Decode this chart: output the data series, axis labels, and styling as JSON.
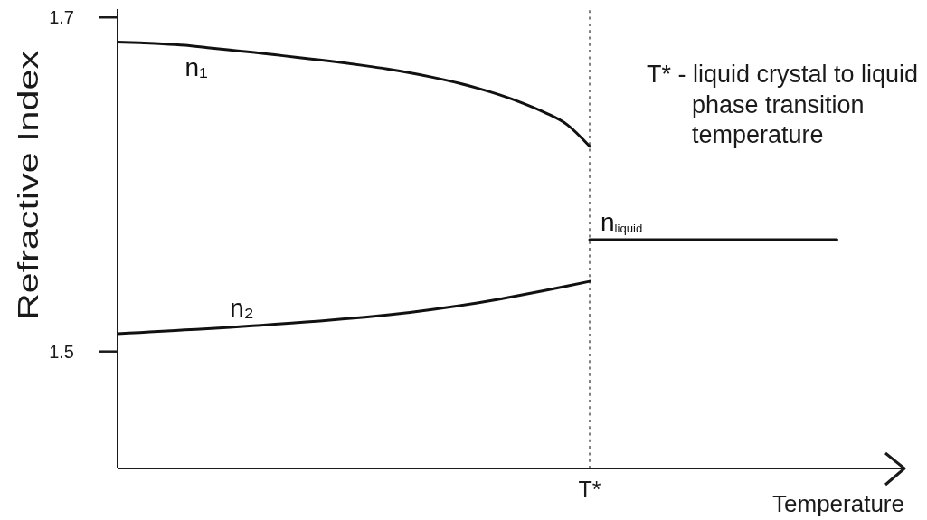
{
  "chart_data": {
    "type": "line",
    "categories": [
      null,
      null,
      null,
      null,
      null,
      null,
      null,
      null,
      null,
      null,
      null,
      null,
      null,
      null,
      null,
      null,
      null,
      null,
      null,
      null,
      null,
      "T*",
      null,
      null,
      null,
      null,
      null,
      null,
      null,
      null,
      null,
      null,
      null,
      null,
      null,
      null
    ],
    "series": [
      {
        "name": "n₁",
        "color": "#111111",
        "values": [
          1.6853,
          1.6848,
          1.6842,
          1.6833,
          1.6819,
          1.6805,
          1.6791,
          1.6776,
          1.6761,
          1.6745,
          1.6729,
          1.6711,
          1.6691,
          1.6668,
          1.6642,
          1.6612,
          1.6577,
          1.6536,
          1.6488,
          1.6431,
          1.6358,
          1.6228,
          null,
          null,
          null,
          null,
          null,
          null,
          null,
          null,
          null,
          null,
          null,
          null,
          null,
          null
        ]
      },
      {
        "name": "n₂",
        "color": "#111111",
        "values": [
          1.5107,
          1.5114,
          1.5121,
          1.5129,
          1.5137,
          1.5145,
          1.5154,
          1.5163,
          1.5173,
          1.5183,
          1.5194,
          1.5206,
          1.5219,
          1.5234,
          1.5251,
          1.527,
          1.5291,
          1.5314,
          1.5339,
          1.5365,
          1.5392,
          1.542,
          null,
          null,
          null,
          null,
          null,
          null,
          null,
          null,
          null,
          null,
          null,
          null,
          null,
          null
        ]
      },
      {
        "name": "n$_{liquid}$",
        "color": "#111111",
        "values": [
          null,
          null,
          null,
          null,
          null,
          null,
          null,
          null,
          null,
          null,
          null,
          null,
          null,
          null,
          null,
          null,
          null,
          null,
          null,
          null,
          null,
          1.567,
          1.567,
          1.567,
          1.567,
          1.567,
          1.567,
          1.567,
          1.567,
          1.567,
          1.567,
          1.567,
          1.567,
          null,
          null,
          null
        ]
      }
    ],
    "xlabel": "Temperature",
    "ylabel": "Refractive Index",
    "ylim": [
      1.43,
      1.705
    ],
    "yticks": [
      1.5,
      1.7
    ],
    "ref_lines": [
      {
        "axis": "x",
        "value": "T*",
        "color": "#808080",
        "line_style": "dotted"
      }
    ],
    "annotations": [
      "T* - liquid crystal to liquid\nphase transition\ntemperature"
    ],
    "marker": "none"
  }
}
